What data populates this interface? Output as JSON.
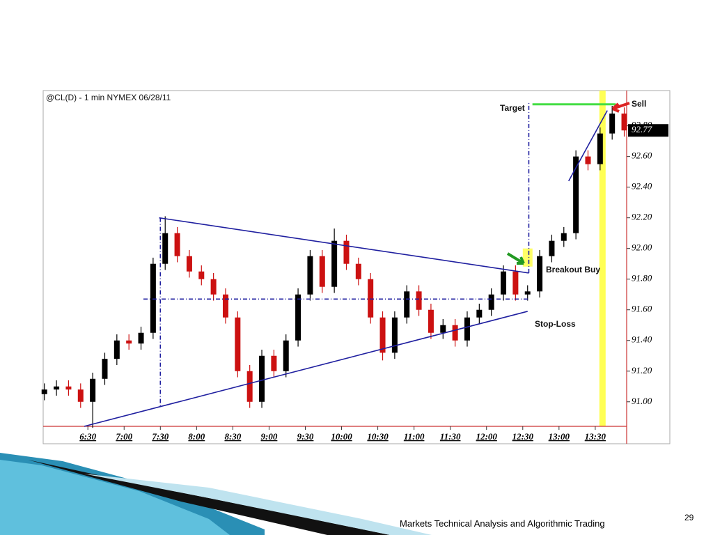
{
  "chart_data": {
    "type": "candlestick",
    "title": "@CL(D) - 1 min  NYMEX  06/28/11",
    "xlim": [
      353,
      836
    ],
    "xticks": [
      {
        "value": 390,
        "label": "6:30"
      },
      {
        "value": 420,
        "label": "7:00"
      },
      {
        "value": 450,
        "label": "7:30"
      },
      {
        "value": 480,
        "label": "8:00"
      },
      {
        "value": 510,
        "label": "8:30"
      },
      {
        "value": 540,
        "label": "9:00"
      },
      {
        "value": 570,
        "label": "9:30"
      },
      {
        "value": 600,
        "label": "10:00"
      },
      {
        "value": 630,
        "label": "10:30"
      },
      {
        "value": 660,
        "label": "11:00"
      },
      {
        "value": 690,
        "label": "11:30"
      },
      {
        "value": 720,
        "label": "12:00"
      },
      {
        "value": 750,
        "label": "12:30"
      },
      {
        "value": 780,
        "label": "13:00"
      },
      {
        "value": 810,
        "label": "13:30"
      }
    ],
    "ylim": [
      90.84,
      93.03
    ],
    "yticks": [
      {
        "value": 91,
        "label": "91.00"
      },
      {
        "value": 91.2,
        "label": "91.20"
      },
      {
        "value": 91.4,
        "label": "91.40"
      },
      {
        "value": 91.6,
        "label": "91.60"
      },
      {
        "value": 91.8,
        "label": "91.80"
      },
      {
        "value": 92,
        "label": "92.00"
      },
      {
        "value": 92.2,
        "label": "92.20"
      },
      {
        "value": 92.4,
        "label": "92.40"
      },
      {
        "value": 92.6,
        "label": "92.60"
      },
      {
        "value": 92.8,
        "label": "92.80"
      }
    ],
    "series": [
      {
        "up_color": "#000000",
        "down_color": "#cc1111",
        "x": [
          354,
          364,
          374,
          384,
          394,
          404,
          414,
          424,
          434,
          444,
          454,
          464,
          474,
          484,
          494,
          504,
          514,
          524,
          534,
          544,
          554,
          564,
          574,
          584,
          594,
          604,
          614,
          624,
          634,
          644,
          654,
          664,
          674,
          684,
          694,
          704,
          714,
          724,
          734,
          744,
          754,
          764,
          774,
          784,
          794,
          804,
          814,
          824,
          834
        ],
        "open": [
          91.05,
          91.08,
          91.1,
          91.08,
          91.0,
          91.15,
          91.28,
          91.4,
          91.38,
          91.45,
          91.9,
          92.1,
          91.95,
          91.85,
          91.8,
          91.7,
          91.55,
          91.2,
          91.0,
          91.3,
          91.2,
          91.4,
          91.7,
          91.95,
          91.75,
          92.05,
          91.9,
          91.8,
          91.55,
          91.32,
          91.55,
          91.72,
          91.6,
          91.45,
          91.5,
          91.4,
          91.55,
          91.6,
          91.7,
          91.85,
          91.7,
          91.72,
          91.95,
          92.05,
          92.1,
          92.6,
          92.55,
          92.75,
          92.88
        ],
        "high": [
          91.12,
          91.14,
          91.14,
          91.12,
          91.19,
          91.32,
          91.44,
          91.44,
          91.49,
          91.94,
          92.21,
          92.14,
          91.99,
          91.89,
          91.84,
          91.74,
          91.59,
          91.24,
          91.34,
          91.34,
          91.44,
          91.74,
          91.99,
          91.99,
          92.13,
          92.09,
          91.94,
          91.84,
          91.59,
          91.59,
          91.76,
          91.76,
          91.64,
          91.54,
          91.54,
          91.59,
          91.64,
          91.74,
          91.89,
          91.89,
          91.76,
          91.99,
          92.09,
          92.14,
          92.64,
          92.64,
          92.79,
          92.93,
          92.92
        ],
        "low": [
          91.01,
          91.04,
          91.04,
          90.96,
          90.83,
          91.11,
          91.24,
          91.34,
          91.34,
          91.41,
          91.86,
          91.91,
          91.81,
          91.76,
          91.66,
          91.51,
          91.16,
          90.96,
          90.96,
          91.16,
          91.16,
          91.36,
          91.66,
          91.71,
          91.71,
          91.86,
          91.76,
          91.51,
          91.27,
          91.28,
          91.51,
          91.56,
          91.41,
          91.41,
          91.36,
          91.36,
          91.51,
          91.56,
          91.66,
          91.66,
          91.66,
          91.68,
          91.91,
          92.01,
          92.06,
          92.51,
          92.51,
          92.71,
          92.73
        ],
        "close": [
          91.08,
          91.1,
          91.08,
          91.0,
          91.15,
          91.28,
          91.4,
          91.38,
          91.45,
          91.9,
          92.1,
          91.95,
          91.85,
          91.8,
          91.7,
          91.55,
          91.2,
          91.0,
          91.3,
          91.2,
          91.4,
          91.7,
          91.95,
          91.75,
          92.05,
          91.9,
          91.8,
          91.55,
          91.32,
          91.55,
          91.72,
          91.6,
          91.45,
          91.5,
          91.4,
          91.55,
          91.6,
          91.7,
          91.85,
          91.7,
          91.72,
          91.95,
          92.05,
          92.1,
          92.6,
          92.55,
          92.75,
          92.88,
          92.77
        ]
      }
    ],
    "lines": [
      {
        "x": [
          816,
          816
        ],
        "y": [
          90.84,
          93.03
        ],
        "color": "#ffff55",
        "style": "band"
      },
      {
        "x": [
          449,
          755
        ],
        "y": [
          92.2,
          91.84
        ],
        "color": "#2020a0",
        "style": "solid"
      },
      {
        "x": [
          387,
          754
        ],
        "y": [
          90.84,
          91.59
        ],
        "color": "#2020a0",
        "style": "solid"
      },
      {
        "x": [
          436,
          755
        ],
        "y": [
          91.67,
          91.67
        ],
        "color": "#2020a0",
        "style": "dashdot"
      },
      {
        "x": [
          450,
          450
        ],
        "y": [
          92.2,
          90.96
        ],
        "color": "#2020a0",
        "style": "dashdot"
      },
      {
        "x": [
          755,
          755
        ],
        "y": [
          91.84,
          92.95
        ],
        "color": "#2020a0",
        "style": "dashdot"
      },
      {
        "x": [
          758,
          827
        ],
        "y": [
          92.94,
          92.94
        ],
        "color": "#44dd44",
        "style": "solid"
      },
      {
        "x": [
          788,
          820
        ],
        "y": [
          92.44,
          92.9
        ],
        "color": "#2020a0",
        "style": "solid"
      }
    ],
    "annotations": [
      "Target",
      "Sell",
      "Breakout Buy",
      "Stop-Loss"
    ]
  },
  "footer": {
    "text": "Markets Technical Analysis and Algorithmic Trading",
    "page": "29"
  }
}
